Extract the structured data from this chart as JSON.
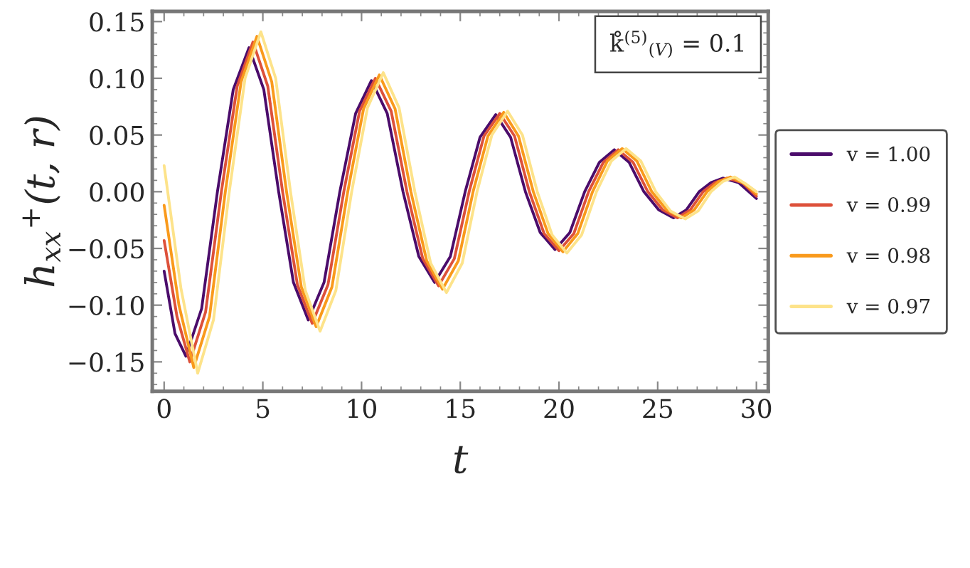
{
  "chart_data": {
    "type": "line",
    "xlabel": "t",
    "ylabel": "h$_{xx}$$^{+}$(t, r)",
    "annotations": [
      "k̊$^{(5)}$$_{(V)}$ = 0.1"
    ],
    "legend": "right",
    "marker": "none",
    "line_style": "solid",
    "grid": false,
    "xlim": [
      -0.6,
      30.6
    ],
    "ylim": [
      -0.176,
      0.159
    ],
    "xticks": [
      0,
      5,
      10,
      15,
      20,
      25,
      30
    ],
    "yticks": [
      {
        "value": -0.15,
        "label": "−0.15"
      },
      {
        "value": -0.1,
        "label": "−0.10"
      },
      {
        "value": -0.05,
        "label": "−0.05"
      },
      {
        "value": 0,
        "label": "0.00"
      },
      {
        "value": 0.05,
        "label": "0.05"
      },
      {
        "value": 0.1,
        "label": "0.10"
      },
      {
        "value": 0.15,
        "label": "0.15"
      }
    ],
    "series": [
      {
        "name": "v = 1.00",
        "color": "#4b0c6b",
        "x": [
          0,
          0.55,
          1.1,
          1.9,
          2.7,
          3.5,
          4.3,
          5.05,
          5.8,
          6.55,
          7.3,
          8.1,
          8.9,
          9.7,
          10.5,
          11.3,
          12.1,
          12.9,
          13.7,
          14.5,
          15.25,
          16.0,
          16.8,
          17.55,
          18.3,
          19.05,
          19.8,
          20.55,
          21.3,
          22.05,
          22.8,
          23.55,
          24.3,
          25.05,
          25.8,
          26.45,
          27.1,
          27.7,
          28.3,
          29.1,
          30
        ],
        "values": [
          -0.07,
          -0.125,
          -0.145,
          -0.103,
          0,
          0.09,
          0.127,
          0.09,
          0,
          -0.08,
          -0.113,
          -0.08,
          0,
          0.069,
          0.098,
          0.069,
          0,
          -0.057,
          -0.08,
          -0.057,
          0,
          0.048,
          0.068,
          0.048,
          0,
          -0.036,
          -0.051,
          -0.036,
          0,
          0.026,
          0.037,
          0.026,
          0,
          -0.016,
          -0.023,
          -0.016,
          0,
          0.008,
          0.012,
          0.008,
          -0.006
        ]
      },
      {
        "name": "v = 0.99",
        "color": "#dd513a",
        "x": [
          0,
          0.65,
          1.3,
          2.1,
          2.9,
          3.7,
          4.5,
          5.25,
          6.0,
          6.75,
          7.5,
          8.3,
          9.1,
          9.9,
          10.7,
          11.5,
          12.3,
          13.1,
          13.9,
          14.7,
          15.45,
          16.2,
          17.0,
          17.75,
          18.5,
          19.25,
          20.0,
          20.75,
          21.5,
          22.25,
          23.0,
          23.75,
          24.5,
          25.25,
          26.0,
          26.65,
          27.3,
          27.9,
          28.5,
          29.3,
          30
        ],
        "values": [
          -0.043,
          -0.11,
          -0.15,
          -0.106,
          0,
          0.093,
          0.132,
          0.093,
          0,
          -0.082,
          -0.116,
          -0.082,
          0,
          0.071,
          0.1,
          0.071,
          0,
          -0.059,
          -0.083,
          -0.059,
          0,
          0.049,
          0.069,
          0.049,
          0,
          -0.037,
          -0.052,
          -0.037,
          0,
          0.026,
          0.037,
          0.026,
          0,
          -0.016,
          -0.023,
          -0.016,
          0,
          0.008,
          0.012,
          0.008,
          -0.004
        ]
      },
      {
        "name": "v = 0.98",
        "color": "#f99a1c",
        "x": [
          0,
          0.75,
          1.5,
          2.3,
          3.1,
          3.9,
          4.7,
          5.45,
          6.2,
          6.95,
          7.7,
          8.5,
          9.3,
          10.1,
          10.9,
          11.7,
          12.5,
          13.3,
          14.1,
          14.9,
          15.65,
          16.4,
          17.2,
          17.95,
          18.7,
          19.45,
          20.2,
          20.95,
          21.7,
          22.45,
          23.2,
          23.95,
          24.7,
          25.45,
          26.2,
          26.85,
          27.5,
          28.1,
          28.7,
          29.4,
          30
        ],
        "values": [
          -0.012,
          -0.1,
          -0.155,
          -0.11,
          0,
          0.097,
          0.137,
          0.097,
          0,
          -0.084,
          -0.119,
          -0.084,
          0,
          0.073,
          0.103,
          0.073,
          0,
          -0.061,
          -0.086,
          -0.061,
          0,
          0.049,
          0.07,
          0.049,
          0,
          -0.037,
          -0.053,
          -0.037,
          0,
          0.027,
          0.038,
          0.027,
          0,
          -0.016,
          -0.023,
          -0.016,
          0,
          0.009,
          0.013,
          0.007,
          -0.002
        ]
      },
      {
        "name": "v = 0.97",
        "color": "#fde38a",
        "x": [
          0,
          0.85,
          1.7,
          2.5,
          3.3,
          4.1,
          4.9,
          5.65,
          6.4,
          7.15,
          7.9,
          8.7,
          9.5,
          10.3,
          11.1,
          11.9,
          12.7,
          13.5,
          14.3,
          15.1,
          15.85,
          16.6,
          17.4,
          18.15,
          18.9,
          19.65,
          20.4,
          21.15,
          21.9,
          22.65,
          23.4,
          24.15,
          24.9,
          25.65,
          26.4,
          27.05,
          27.7,
          28.3,
          28.9,
          29.45,
          30
        ],
        "values": [
          0.023,
          -0.085,
          -0.16,
          -0.113,
          0,
          0.1,
          0.141,
          0.1,
          0,
          -0.087,
          -0.123,
          -0.087,
          0,
          0.074,
          0.105,
          0.074,
          0,
          -0.063,
          -0.089,
          -0.063,
          0,
          0.05,
          0.071,
          0.05,
          0,
          -0.038,
          -0.054,
          -0.038,
          0,
          0.027,
          0.038,
          0.027,
          0,
          -0.017,
          -0.024,
          -0.017,
          0,
          0.009,
          0.013,
          0.007,
          0.0
        ]
      }
    ]
  }
}
